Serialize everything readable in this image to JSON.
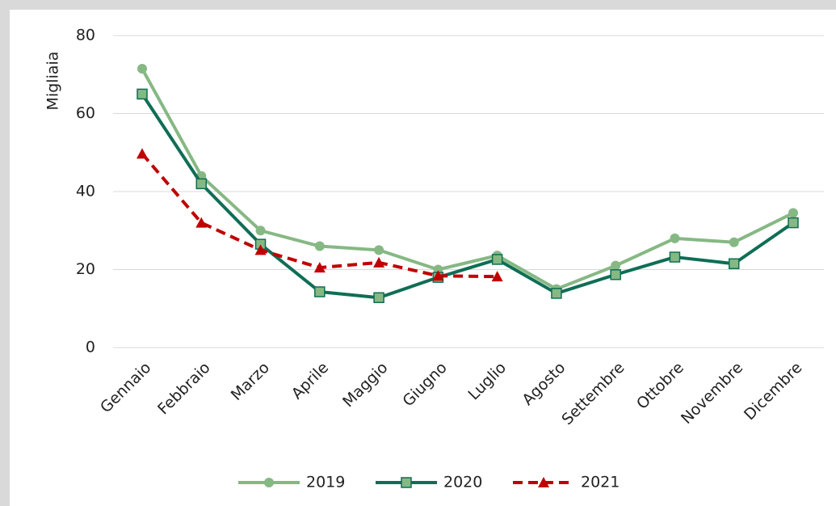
{
  "chart_data": {
    "type": "line",
    "y_label": "Migliaia",
    "categories": [
      "Gennaio",
      "Febbraio",
      "Marzo",
      "Aprile",
      "Maggio",
      "Giugno",
      "Luglio",
      "Agosto",
      "Settembre",
      "Ottobre",
      "Novembre",
      "Dicembre"
    ],
    "series": [
      {
        "name": "2019",
        "color": "#86b884",
        "marker": "circle",
        "line_style": "solid",
        "values": [
          71.5,
          44,
          30,
          26,
          25,
          20,
          23.6,
          15,
          21,
          28,
          27,
          34.5
        ]
      },
      {
        "name": "2020",
        "color": "#0f6e55",
        "marker": "square",
        "line_style": "solid",
        "values": [
          65,
          42,
          26.5,
          14.3,
          12.8,
          18,
          22.6,
          13.9,
          18.7,
          23.2,
          21.5,
          32
        ]
      },
      {
        "name": "2021",
        "color": "#c00000",
        "marker": "triangle",
        "line_style": "dashed",
        "values": [
          49.7,
          32,
          25,
          20.5,
          21.8,
          18.4,
          18.2,
          null,
          null,
          null,
          null,
          null
        ]
      }
    ],
    "ylim": [
      0,
      80
    ],
    "yticks": [
      0,
      20,
      40,
      60,
      80
    ],
    "grid": true,
    "legend": "bottom"
  }
}
